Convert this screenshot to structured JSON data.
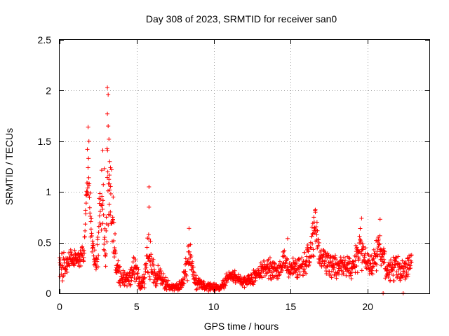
{
  "chart_data": {
    "type": "scatter",
    "title": "Day 308 of 2023, SRMTID for receiver san0",
    "xlabel": "GPS time / hours",
    "ylabel": "SRMTID / TECUs",
    "xlim": [
      0,
      24
    ],
    "ylim": [
      0,
      2.5
    ],
    "xticks": [
      0,
      5,
      10,
      15,
      20
    ],
    "xtick_labels": [
      "0",
      "5",
      "10",
      "15",
      "20"
    ],
    "yticks": [
      0,
      0.5,
      1,
      1.5,
      2,
      2.5
    ],
    "ytick_labels": [
      "0",
      "0.5",
      "1",
      "1.5",
      "2",
      "2.5"
    ],
    "grid": true,
    "marker": "+",
    "color": "#ff0000",
    "series": [
      {
        "name": "SRMTID",
        "profile": [
          [
            0.0,
            0.3,
            0.12
          ],
          [
            0.2,
            0.25,
            0.1
          ],
          [
            0.5,
            0.32,
            0.08
          ],
          [
            0.8,
            0.36,
            0.06
          ],
          [
            1.0,
            0.34,
            0.06
          ],
          [
            1.3,
            0.35,
            0.06
          ],
          [
            1.6,
            0.4,
            0.08
          ],
          [
            1.7,
            0.9,
            0.2
          ],
          [
            1.9,
            1.15,
            0.25
          ],
          [
            2.0,
            0.75,
            0.2
          ],
          [
            2.2,
            0.4,
            0.1
          ],
          [
            2.4,
            0.3,
            0.08
          ],
          [
            2.6,
            0.7,
            0.3
          ],
          [
            2.8,
            0.9,
            0.3
          ],
          [
            3.0,
            0.3,
            0.15
          ],
          [
            3.1,
            1.2,
            0.4
          ],
          [
            3.3,
            1.1,
            0.35
          ],
          [
            3.5,
            0.6,
            0.25
          ],
          [
            3.7,
            0.25,
            0.1
          ],
          [
            4.0,
            0.15,
            0.06
          ],
          [
            4.5,
            0.14,
            0.05
          ],
          [
            4.9,
            0.25,
            0.1
          ],
          [
            5.2,
            0.1,
            0.05
          ],
          [
            5.5,
            0.12,
            0.06
          ],
          [
            5.7,
            0.4,
            0.2
          ],
          [
            5.9,
            0.3,
            0.15
          ],
          [
            6.2,
            0.15,
            0.08
          ],
          [
            6.5,
            0.2,
            0.08
          ],
          [
            6.8,
            0.1,
            0.05
          ],
          [
            7.2,
            0.06,
            0.03
          ],
          [
            7.8,
            0.07,
            0.03
          ],
          [
            8.2,
            0.2,
            0.1
          ],
          [
            8.4,
            0.4,
            0.15
          ],
          [
            8.7,
            0.15,
            0.08
          ],
          [
            9.2,
            0.08,
            0.03
          ],
          [
            9.8,
            0.06,
            0.03
          ],
          [
            10.4,
            0.05,
            0.02
          ],
          [
            10.7,
            0.1,
            0.04
          ],
          [
            11.0,
            0.18,
            0.05
          ],
          [
            11.5,
            0.15,
            0.04
          ],
          [
            12.0,
            0.12,
            0.04
          ],
          [
            12.5,
            0.15,
            0.05
          ],
          [
            13.0,
            0.2,
            0.06
          ],
          [
            13.5,
            0.25,
            0.07
          ],
          [
            14.0,
            0.22,
            0.07
          ],
          [
            14.5,
            0.3,
            0.09
          ],
          [
            15.0,
            0.28,
            0.09
          ],
          [
            15.5,
            0.25,
            0.08
          ],
          [
            16.0,
            0.3,
            0.09
          ],
          [
            16.4,
            0.5,
            0.15
          ],
          [
            16.6,
            0.65,
            0.15
          ],
          [
            16.9,
            0.35,
            0.1
          ],
          [
            17.5,
            0.3,
            0.09
          ],
          [
            18.0,
            0.25,
            0.08
          ],
          [
            18.5,
            0.28,
            0.08
          ],
          [
            19.0,
            0.25,
            0.08
          ],
          [
            19.5,
            0.45,
            0.15
          ],
          [
            19.8,
            0.35,
            0.1
          ],
          [
            20.2,
            0.25,
            0.08
          ],
          [
            20.7,
            0.4,
            0.15
          ],
          [
            21.0,
            0.35,
            0.12
          ],
          [
            21.3,
            0.2,
            0.08
          ],
          [
            21.8,
            0.25,
            0.09
          ],
          [
            22.3,
            0.22,
            0.08
          ],
          [
            22.8,
            0.3,
            0.08
          ]
        ],
        "outliers": [
          [
            1.85,
            1.64
          ],
          [
            1.9,
            1.5
          ],
          [
            1.8,
            1.42
          ],
          [
            2.8,
            1.41
          ],
          [
            2.9,
            1.23
          ],
          [
            3.1,
            2.03
          ],
          [
            3.15,
            1.96
          ],
          [
            3.1,
            1.77
          ],
          [
            3.15,
            1.65
          ],
          [
            3.2,
            1.52
          ],
          [
            3.25,
            1.3
          ],
          [
            3.3,
            1.24
          ],
          [
            5.8,
            1.05
          ],
          [
            5.8,
            0.85
          ],
          [
            8.4,
            0.64
          ],
          [
            14.8,
            0.54
          ],
          [
            16.6,
            0.8
          ],
          [
            16.5,
            0.75
          ],
          [
            19.6,
            0.74
          ],
          [
            20.8,
            0.73
          ],
          [
            21.0,
            0.0
          ],
          [
            22.3,
            0.0
          ]
        ],
        "x_start": 0.0,
        "x_end": 22.85,
        "n_points": 1500
      }
    ]
  }
}
